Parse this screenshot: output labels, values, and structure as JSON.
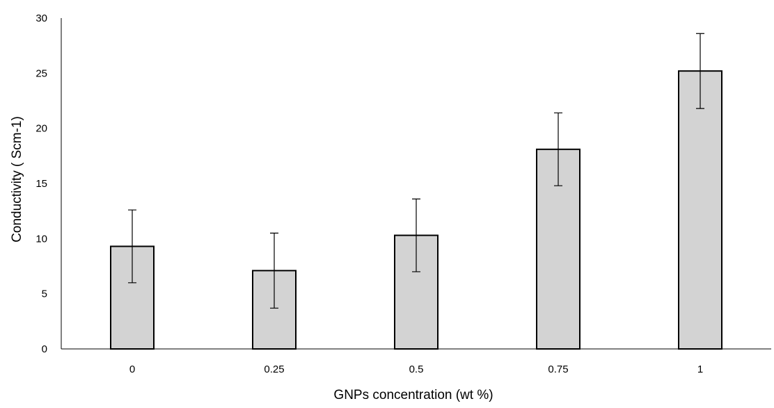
{
  "chart_data": {
    "type": "bar",
    "title": "",
    "xlabel": "GNPs concentration (wt %)",
    "ylabel": "Conductivity ( Scm-1)",
    "categories": [
      "0",
      "0.25",
      "0.5",
      "0.75",
      "1"
    ],
    "values": [
      9.3,
      7.1,
      10.3,
      18.1,
      25.2
    ],
    "error": [
      3.3,
      3.4,
      3.3,
      3.3,
      3.4
    ],
    "ylim": [
      0,
      30
    ],
    "yticks": [
      "0",
      "5",
      "10",
      "15",
      "20",
      "25",
      "30"
    ],
    "grid": false,
    "legend": "none",
    "bar_fill": "#d3d3d3",
    "bar_edge": "#000000"
  }
}
